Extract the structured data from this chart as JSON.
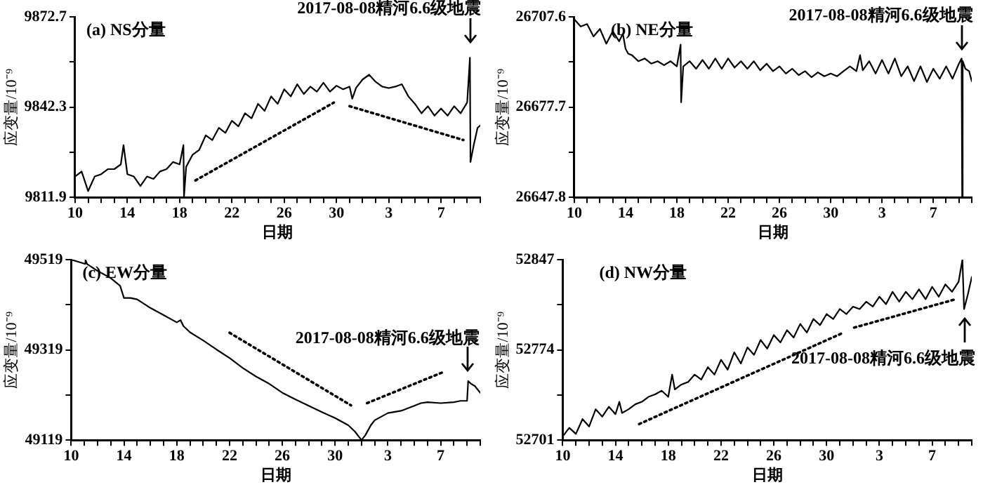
{
  "chart_data": [
    {
      "type": "line",
      "title": "(a) NS分量",
      "xlabel": "日期",
      "ylabel": "应变量/10⁻⁹",
      "xlim": [
        "2017-07-10",
        "2017-08-10"
      ],
      "xticks": [
        {
          "value": "2017-07-10",
          "label": "10"
        },
        {
          "value": "2017-07-11",
          "label": null
        },
        {
          "value": "2017-07-12",
          "label": null
        },
        {
          "value": "2017-07-13",
          "label": null
        },
        {
          "value": "2017-07-14",
          "label": "14"
        },
        {
          "value": "2017-07-15",
          "label": null
        },
        {
          "value": "2017-07-16",
          "label": null
        },
        {
          "value": "2017-07-17",
          "label": null
        },
        {
          "value": "2017-07-18",
          "label": "18"
        },
        {
          "value": "2017-07-19",
          "label": null
        },
        {
          "value": "2017-07-20",
          "label": null
        },
        {
          "value": "2017-07-21",
          "label": null
        },
        {
          "value": "2017-07-22",
          "label": "22"
        },
        {
          "value": "2017-07-23",
          "label": null
        },
        {
          "value": "2017-07-24",
          "label": null
        },
        {
          "value": "2017-07-25",
          "label": null
        },
        {
          "value": "2017-07-26",
          "label": "26"
        },
        {
          "value": "2017-07-27",
          "label": null
        },
        {
          "value": "2017-07-28",
          "label": null
        },
        {
          "value": "2017-07-29",
          "label": null
        },
        {
          "value": "2017-07-30",
          "label": "30"
        },
        {
          "value": "2017-07-31",
          "label": null
        },
        {
          "value": "2017-08-01",
          "label": null
        },
        {
          "value": "2017-08-02",
          "label": null
        },
        {
          "value": "2017-08-03",
          "label": "3"
        },
        {
          "value": "2017-08-04",
          "label": null
        },
        {
          "value": "2017-08-05",
          "label": null
        },
        {
          "value": "2017-08-06",
          "label": null
        },
        {
          "value": "2017-08-07",
          "label": "7"
        },
        {
          "value": "2017-08-08",
          "label": null
        },
        {
          "value": "2017-08-09",
          "label": null
        },
        {
          "value": "2017-08-10",
          "label": null
        }
      ],
      "ylim": [
        9811.9,
        9872.7
      ],
      "yticks": [
        9811.9,
        {
          "value": 9827.1,
          "label": null
        },
        9842.3,
        {
          "value": 9857.5,
          "label": null
        },
        9872.7
      ],
      "annotations": [
        {
          "text": "2017-08-08精河6.6级地震",
          "x": "2017-08-09T05:00",
          "y": 9861
        }
      ],
      "series": [
        {
          "type": "line",
          "color": "#000000",
          "line_style": "solid",
          "x": [
            "2017-07-10",
            "2017-07-10T12:00",
            "2017-07-11",
            "2017-07-11T12:00",
            "2017-07-12",
            "2017-07-12T12:00",
            "2017-07-13",
            "2017-07-13T12:00",
            "2017-07-13T17:00",
            "2017-07-14",
            "2017-07-14T12:00",
            "2017-07-15",
            "2017-07-15T12:00",
            "2017-07-16",
            "2017-07-16T12:00",
            "2017-07-17",
            "2017-07-17T12:00",
            "2017-07-18",
            "2017-07-18T07:00",
            "2017-07-18T08:00",
            "2017-07-18T12:00",
            "2017-07-19",
            "2017-07-19T12:00",
            "2017-07-20",
            "2017-07-20T12:00",
            "2017-07-21",
            "2017-07-21T12:00",
            "2017-07-22",
            "2017-07-22T12:00",
            "2017-07-23",
            "2017-07-23T12:00",
            "2017-07-24",
            "2017-07-24T12:00",
            "2017-07-25",
            "2017-07-25T12:00",
            "2017-07-26",
            "2017-07-26T12:00",
            "2017-07-27",
            "2017-07-27T12:00",
            "2017-07-28",
            "2017-07-28T12:00",
            "2017-07-29",
            "2017-07-29T12:00",
            "2017-07-30",
            "2017-07-30T12:00",
            "2017-07-31",
            "2017-07-31T05:00",
            "2017-07-31T12:00",
            "2017-08-01",
            "2017-08-01T12:00",
            "2017-08-02",
            "2017-08-02T12:00",
            "2017-08-03",
            "2017-08-03T12:00",
            "2017-08-04",
            "2017-08-04T12:00",
            "2017-08-05",
            "2017-08-05T12:00",
            "2017-08-06",
            "2017-08-06T12:00",
            "2017-08-07",
            "2017-08-07T12:00",
            "2017-08-08",
            "2017-08-08T12:00",
            "2017-08-09",
            "2017-08-09T05:00",
            "2017-08-09T06:00",
            "2017-08-09T12:00",
            "2017-08-09T19:00",
            "2017-08-10"
          ],
          "values": [
            9818.9,
            9820.6,
            9814.0,
            9818.9,
            9819.7,
            9821.4,
            9821.4,
            9823.0,
            9829.5,
            9819.7,
            9818.9,
            9815.7,
            9818.9,
            9818.1,
            9820.6,
            9821.4,
            9823.8,
            9823.0,
            9829.5,
            9812.0,
            9822.2,
            9826.3,
            9827.9,
            9832.8,
            9831.2,
            9835.3,
            9833.6,
            9837.7,
            9835.8,
            9840.2,
            9838.5,
            9843.4,
            9841.0,
            9845.9,
            9843.4,
            9848.3,
            9845.9,
            9850.0,
            9846.7,
            9849.2,
            9847.5,
            9850.5,
            9847.5,
            9849.5,
            9848.3,
            9849.2,
            9845.1,
            9848.8,
            9851.6,
            9853.2,
            9850.8,
            9849.2,
            9848.7,
            9849.2,
            9850.0,
            9845.9,
            9843.4,
            9840.2,
            9842.6,
            9839.4,
            9841.8,
            9839.4,
            9842.6,
            9840.2,
            9843.9,
            9858.9,
            9823.8,
            9829.5,
            9835.3,
            9836.1
          ]
        },
        {
          "type": "line",
          "color": "#000000",
          "line_style": "dotted",
          "x": [
            "2017-07-19T05:00",
            "2017-07-29T19:00"
          ],
          "values": [
            9817.6,
            9843.8
          ]
        },
        {
          "type": "line",
          "color": "#000000",
          "line_style": "dotted",
          "x": [
            "2017-07-31",
            "2017-08-08T17:00"
          ],
          "values": [
            9842.6,
            9831.2
          ]
        }
      ]
    },
    {
      "type": "line",
      "title": "(b) NE分量",
      "xlabel": "日期",
      "ylabel": "应变量/10⁻⁹",
      "xlim": [
        "2017-07-10",
        "2017-08-10"
      ],
      "xticks": [
        {
          "value": "2017-07-10",
          "label": "10"
        },
        {
          "value": "2017-07-11",
          "label": null
        },
        {
          "value": "2017-07-12",
          "label": null
        },
        {
          "value": "2017-07-13",
          "label": null
        },
        {
          "value": "2017-07-14",
          "label": "14"
        },
        {
          "value": "2017-07-15",
          "label": null
        },
        {
          "value": "2017-07-16",
          "label": null
        },
        {
          "value": "2017-07-17",
          "label": null
        },
        {
          "value": "2017-07-18",
          "label": "18"
        },
        {
          "value": "2017-07-19",
          "label": null
        },
        {
          "value": "2017-07-20",
          "label": null
        },
        {
          "value": "2017-07-21",
          "label": null
        },
        {
          "value": "2017-07-22",
          "label": "22"
        },
        {
          "value": "2017-07-23",
          "label": null
        },
        {
          "value": "2017-07-24",
          "label": null
        },
        {
          "value": "2017-07-25",
          "label": null
        },
        {
          "value": "2017-07-26",
          "label": "26"
        },
        {
          "value": "2017-07-27",
          "label": null
        },
        {
          "value": "2017-07-28",
          "label": null
        },
        {
          "value": "2017-07-29",
          "label": null
        },
        {
          "value": "2017-07-30",
          "label": "30"
        },
        {
          "value": "2017-07-31",
          "label": null
        },
        {
          "value": "2017-08-01",
          "label": null
        },
        {
          "value": "2017-08-02",
          "label": null
        },
        {
          "value": "2017-08-03",
          "label": "3"
        },
        {
          "value": "2017-08-04",
          "label": null
        },
        {
          "value": "2017-08-05",
          "label": null
        },
        {
          "value": "2017-08-06",
          "label": null
        },
        {
          "value": "2017-08-07",
          "label": "7"
        },
        {
          "value": "2017-08-08",
          "label": null
        },
        {
          "value": "2017-08-09",
          "label": null
        },
        {
          "value": "2017-08-10",
          "label": null
        }
      ],
      "ylim": [
        26647.8,
        26707.6
      ],
      "yticks": [
        26647.8,
        {
          "value": 26662.75,
          "label": null
        },
        26677.7,
        {
          "value": 26692.65,
          "label": null
        },
        26707.6
      ],
      "annotations": [
        {
          "text": "2017-08-08精河6.6级地震",
          "x": "2017-08-09T05:00",
          "y": 26693.8
        }
      ],
      "series": [
        {
          "type": "line",
          "color": "#000000",
          "line_style": "solid",
          "x": [
            "2017-07-10",
            "2017-07-10T12:00",
            "2017-07-11",
            "2017-07-11T12:00",
            "2017-07-12",
            "2017-07-12T12:00",
            "2017-07-13",
            "2017-07-13T12:00",
            "2017-07-13T19:00",
            "2017-07-14",
            "2017-07-14T05:00",
            "2017-07-14T12:00",
            "2017-07-15",
            "2017-07-15T12:00",
            "2017-07-16",
            "2017-07-16T12:00",
            "2017-07-17",
            "2017-07-17T12:00",
            "2017-07-18",
            "2017-07-18T07:00",
            "2017-07-18T08:00",
            "2017-07-18T12:00",
            "2017-07-19",
            "2017-07-19T12:00",
            "2017-07-20",
            "2017-07-20T12:00",
            "2017-07-21",
            "2017-07-21T12:00",
            "2017-07-22",
            "2017-07-22T12:00",
            "2017-07-23",
            "2017-07-23T12:00",
            "2017-07-24",
            "2017-07-24T12:00",
            "2017-07-25",
            "2017-07-25T12:00",
            "2017-07-26",
            "2017-07-26T12:00",
            "2017-07-27",
            "2017-07-27T12:00",
            "2017-07-28",
            "2017-07-28T12:00",
            "2017-07-29",
            "2017-07-29T12:00",
            "2017-07-30",
            "2017-07-30T12:00",
            "2017-07-31",
            "2017-07-31T12:00",
            "2017-08-01",
            "2017-08-01T07:00",
            "2017-08-01T12:00",
            "2017-08-02",
            "2017-08-02T12:00",
            "2017-08-03",
            "2017-08-03T12:00",
            "2017-08-04",
            "2017-08-04T12:00",
            "2017-08-05",
            "2017-08-05T12:00",
            "2017-08-06",
            "2017-08-06T12:00",
            "2017-08-07",
            "2017-08-07T12:00",
            "2017-08-08",
            "2017-08-08T12:00",
            "2017-08-09",
            "2017-08-09T05:00",
            "2017-08-09T06:00",
            "2017-08-09T07:00",
            "2017-08-09T12:00",
            "2017-08-09T19:00",
            "2017-08-10"
          ],
          "values": [
            26706.8,
            26704.4,
            26705.2,
            26701.1,
            26703.6,
            26698.7,
            26702.8,
            26699.5,
            26702.0,
            26697.0,
            26695.4,
            26694.9,
            26692.9,
            26693.8,
            26692.1,
            26692.9,
            26691.6,
            26692.9,
            26691.2,
            26698.4,
            26679.3,
            26691.2,
            26692.9,
            26690.4,
            26693.3,
            26690.4,
            26693.8,
            26690.4,
            26693.8,
            26690.8,
            26692.9,
            26690.4,
            26692.9,
            26689.9,
            26692.1,
            26689.6,
            26691.2,
            26688.8,
            26690.4,
            26688.3,
            26689.6,
            26687.6,
            26689.2,
            26687.9,
            26688.8,
            26687.9,
            26689.6,
            26691.2,
            26689.6,
            26694.9,
            26689.9,
            26692.9,
            26688.8,
            26693.3,
            26688.8,
            26693.8,
            26687.9,
            26691.2,
            26686.3,
            26691.2,
            26686.0,
            26690.4,
            26687.1,
            26691.2,
            26687.1,
            26692.1,
            26693.8,
            26647.8,
            26693.0,
            26690.4,
            26689.6,
            26686.3
          ]
        }
      ]
    },
    {
      "type": "line",
      "title": "(c) EW分量",
      "xlabel": "日期",
      "ylabel": "应变量/10⁻⁹",
      "xlim": [
        "2017-07-10",
        "2017-08-10"
      ],
      "xticks": [
        {
          "value": "2017-07-10",
          "label": "10"
        },
        {
          "value": "2017-07-11",
          "label": null
        },
        {
          "value": "2017-07-12",
          "label": null
        },
        {
          "value": "2017-07-13",
          "label": null
        },
        {
          "value": "2017-07-14",
          "label": "14"
        },
        {
          "value": "2017-07-15",
          "label": null
        },
        {
          "value": "2017-07-16",
          "label": null
        },
        {
          "value": "2017-07-17",
          "label": null
        },
        {
          "value": "2017-07-18",
          "label": "18"
        },
        {
          "value": "2017-07-19",
          "label": null
        },
        {
          "value": "2017-07-20",
          "label": null
        },
        {
          "value": "2017-07-21",
          "label": null
        },
        {
          "value": "2017-07-22",
          "label": "22"
        },
        {
          "value": "2017-07-23",
          "label": null
        },
        {
          "value": "2017-07-24",
          "label": null
        },
        {
          "value": "2017-07-25",
          "label": null
        },
        {
          "value": "2017-07-26",
          "label": "26"
        },
        {
          "value": "2017-07-27",
          "label": null
        },
        {
          "value": "2017-07-28",
          "label": null
        },
        {
          "value": "2017-07-29",
          "label": null
        },
        {
          "value": "2017-07-30",
          "label": "30"
        },
        {
          "value": "2017-07-31",
          "label": null
        },
        {
          "value": "2017-08-01",
          "label": null
        },
        {
          "value": "2017-08-02",
          "label": null
        },
        {
          "value": "2017-08-03",
          "label": "3"
        },
        {
          "value": "2017-08-04",
          "label": null
        },
        {
          "value": "2017-08-05",
          "label": null
        },
        {
          "value": "2017-08-06",
          "label": null
        },
        {
          "value": "2017-08-07",
          "label": "7"
        },
        {
          "value": "2017-08-08",
          "label": null
        },
        {
          "value": "2017-08-09",
          "label": null
        },
        {
          "value": "2017-08-10",
          "label": null
        }
      ],
      "ylim": [
        49119,
        49519
      ],
      "yticks": [
        49119,
        {
          "value": 49219,
          "label": null
        },
        49319,
        {
          "value": 49419,
          "label": null
        },
        49519
      ],
      "annotations": [
        {
          "text": "2017-08-08精河6.6级地震",
          "x": "2017-08-09T02:00",
          "y": 49250
        }
      ],
      "series": [
        {
          "type": "line",
          "color": "#000000",
          "line_style": "solid",
          "x": [
            "2017-07-10",
            "2017-07-11",
            "2017-07-11T02:00",
            "2017-07-11T05:00",
            "2017-07-12",
            "2017-07-13",
            "2017-07-13T17:00",
            "2017-07-14",
            "2017-07-14T12:00",
            "2017-07-15",
            "2017-07-16",
            "2017-07-17",
            "2017-07-18",
            "2017-07-18T07:00",
            "2017-07-18T12:00",
            "2017-07-19",
            "2017-07-20",
            "2017-07-21",
            "2017-07-22",
            "2017-07-23",
            "2017-07-24",
            "2017-07-25",
            "2017-07-26",
            "2017-07-27",
            "2017-07-28",
            "2017-07-29",
            "2017-07-30",
            "2017-07-31",
            "2017-07-31T12:00",
            "2017-08-01",
            "2017-08-01T07:00",
            "2017-08-01T17:00",
            "2017-08-02",
            "2017-08-03",
            "2017-08-04",
            "2017-08-05",
            "2017-08-05T12:00",
            "2017-08-06",
            "2017-08-07",
            "2017-08-08",
            "2017-08-08T12:00",
            "2017-08-09",
            "2017-08-09T02:00",
            "2017-08-09T07:00",
            "2017-08-09T14:00",
            "2017-08-10"
          ],
          "values": [
            49519,
            49510,
            49518,
            49509,
            49494,
            49478,
            49461,
            49434,
            49434,
            49431,
            49412,
            49396,
            49380,
            49385,
            49372,
            49358,
            49340,
            49320,
            49301,
            49279,
            49260,
            49244,
            49224,
            49209,
            49195,
            49181,
            49168,
            49152,
            49138,
            49119,
            49130,
            49152,
            49163,
            49179,
            49184,
            49195,
            49201,
            49203,
            49201,
            49203,
            49206,
            49206,
            49250,
            49244,
            49239,
            49224
          ]
        },
        {
          "type": "line",
          "color": "#000000",
          "line_style": "dotted",
          "x": [
            "2017-07-22",
            "2017-07-31T05:00"
          ],
          "values": [
            49357,
            49196
          ]
        },
        {
          "type": "line",
          "color": "#000000",
          "line_style": "dotted",
          "x": [
            "2017-08-01T10:00",
            "2017-08-07T07:00"
          ],
          "values": [
            49201,
            49271
          ]
        }
      ]
    },
    {
      "type": "line",
      "title": "(d) NW分量",
      "xlabel": "日期",
      "ylabel": "应变量/10⁻⁹",
      "xlim": [
        "2017-07-10",
        "2017-08-10"
      ],
      "xticks": [
        {
          "value": "2017-07-10",
          "label": "10"
        },
        {
          "value": "2017-07-11",
          "label": null
        },
        {
          "value": "2017-07-12",
          "label": null
        },
        {
          "value": "2017-07-13",
          "label": null
        },
        {
          "value": "2017-07-14",
          "label": "14"
        },
        {
          "value": "2017-07-15",
          "label": null
        },
        {
          "value": "2017-07-16",
          "label": null
        },
        {
          "value": "2017-07-17",
          "label": null
        },
        {
          "value": "2017-07-18",
          "label": "18"
        },
        {
          "value": "2017-07-19",
          "label": null
        },
        {
          "value": "2017-07-20",
          "label": null
        },
        {
          "value": "2017-07-21",
          "label": null
        },
        {
          "value": "2017-07-22",
          "label": "22"
        },
        {
          "value": "2017-07-23",
          "label": null
        },
        {
          "value": "2017-07-24",
          "label": null
        },
        {
          "value": "2017-07-25",
          "label": null
        },
        {
          "value": "2017-07-26",
          "label": "26"
        },
        {
          "value": "2017-07-27",
          "label": null
        },
        {
          "value": "2017-07-28",
          "label": null
        },
        {
          "value": "2017-07-29",
          "label": null
        },
        {
          "value": "2017-07-30",
          "label": "30"
        },
        {
          "value": "2017-07-31",
          "label": null
        },
        {
          "value": "2017-08-01",
          "label": null
        },
        {
          "value": "2017-08-02",
          "label": null
        },
        {
          "value": "2017-08-03",
          "label": "3"
        },
        {
          "value": "2017-08-04",
          "label": null
        },
        {
          "value": "2017-08-05",
          "label": null
        },
        {
          "value": "2017-08-06",
          "label": null
        },
        {
          "value": "2017-08-07",
          "label": "7"
        },
        {
          "value": "2017-08-08",
          "label": null
        },
        {
          "value": "2017-08-09",
          "label": null
        },
        {
          "value": "2017-08-10",
          "label": null
        }
      ],
      "ylim": [
        52701,
        52847
      ],
      "yticks": [
        52701,
        {
          "value": 52737.5,
          "label": null
        },
        52774,
        {
          "value": 52810.5,
          "label": null
        },
        52847
      ],
      "annotations": [
        {
          "text": "2017-08-08精河6.6级地震",
          "x": "2017-08-09T10:00",
          "y": 52807
        }
      ],
      "series": [
        {
          "type": "line",
          "color": "#000000",
          "line_style": "solid",
          "x": [
            "2017-07-10",
            "2017-07-10T12:00",
            "2017-07-11",
            "2017-07-11T12:00",
            "2017-07-12",
            "2017-07-12T12:00",
            "2017-07-13",
            "2017-07-13T12:00",
            "2017-07-14",
            "2017-07-14T07:00",
            "2017-07-14T12:00",
            "2017-07-15",
            "2017-07-15T12:00",
            "2017-07-16",
            "2017-07-16T12:00",
            "2017-07-17",
            "2017-07-17T12:00",
            "2017-07-18",
            "2017-07-18T07:00",
            "2017-07-18T12:00",
            "2017-07-19",
            "2017-07-19T12:00",
            "2017-07-20",
            "2017-07-20T12:00",
            "2017-07-21",
            "2017-07-21T12:00",
            "2017-07-22",
            "2017-07-22T12:00",
            "2017-07-23",
            "2017-07-23T12:00",
            "2017-07-24",
            "2017-07-24T12:00",
            "2017-07-25",
            "2017-07-25T12:00",
            "2017-07-26",
            "2017-07-26T12:00",
            "2017-07-27",
            "2017-07-27T12:00",
            "2017-07-28",
            "2017-07-28T12:00",
            "2017-07-29",
            "2017-07-29T12:00",
            "2017-07-30",
            "2017-07-30T12:00",
            "2017-07-31",
            "2017-07-31T12:00",
            "2017-08-01",
            "2017-08-01T12:00",
            "2017-08-02",
            "2017-08-02T12:00",
            "2017-08-03",
            "2017-08-03T12:00",
            "2017-08-04",
            "2017-08-04T12:00",
            "2017-08-05",
            "2017-08-05T12:00",
            "2017-08-06",
            "2017-08-06T12:00",
            "2017-08-07",
            "2017-08-07T12:00",
            "2017-08-08",
            "2017-08-08T12:00",
            "2017-08-09",
            "2017-08-09T07:00",
            "2017-08-09T10:00",
            "2017-08-09T17:00",
            "2017-08-10"
          ],
          "values": [
            52704,
            52711,
            52706,
            52718,
            52712,
            52726,
            52720,
            52728,
            52722,
            52732,
            52723,
            52726,
            52730,
            52732,
            52736,
            52738,
            52741,
            52736,
            52754,
            52742,
            52746,
            52748,
            52754,
            52750,
            52760,
            52754,
            52766,
            52758,
            52772,
            52763,
            52776,
            52770,
            52782,
            52775,
            52786,
            52780,
            52790,
            52784,
            52795,
            52788,
            52799,
            52794,
            52803,
            52799,
            52807,
            52803,
            52809,
            52807,
            52813,
            52809,
            52817,
            52811,
            52821,
            52813,
            52821,
            52815,
            52823,
            52815,
            52825,
            52817,
            52827,
            52821,
            52829,
            52847,
            52807,
            52819,
            52833
          ]
        },
        {
          "type": "line",
          "color": "#000000",
          "line_style": "dotted",
          "x": [
            "2017-07-15T19:00",
            "2017-07-31T07:00"
          ],
          "values": [
            52714,
            52788
          ]
        },
        {
          "type": "line",
          "color": "#000000",
          "line_style": "dotted",
          "x": [
            "2017-08-01T02:00",
            "2017-08-08T19:00"
          ],
          "values": [
            52792,
            52815
          ]
        }
      ]
    }
  ]
}
